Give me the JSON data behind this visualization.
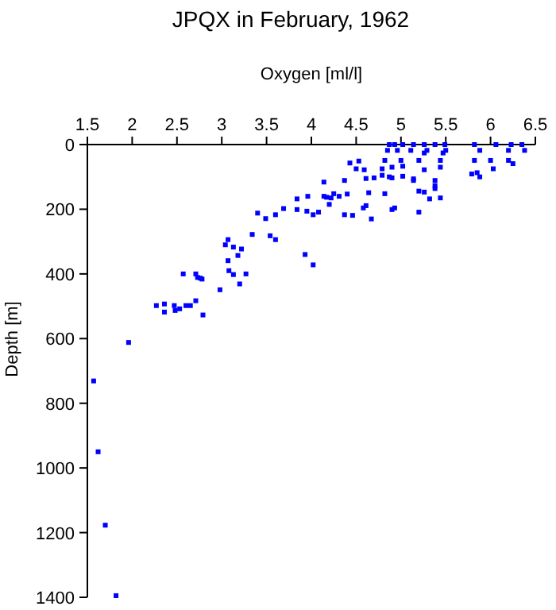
{
  "chart_data": {
    "type": "scatter",
    "title": "JPQX in February, 1962",
    "xlabel": "Oxygen [ml/l]",
    "ylabel": "Depth [m]",
    "xlim": [
      1.5,
      6.5
    ],
    "xticks": [
      1.5,
      2,
      2.5,
      3,
      3.5,
      4,
      4.5,
      5,
      5.5,
      6,
      6.5
    ],
    "ylim": [
      1400,
      0
    ],
    "yticks": [
      0,
      200,
      400,
      600,
      800,
      1000,
      1200,
      1400
    ],
    "marker": "square",
    "grid": false,
    "series": [
      {
        "color": "#0000ff",
        "x": [
          4.87,
          4.93,
          5.02,
          5.14,
          5.26,
          5.38,
          5.49,
          5.82,
          6.06,
          6.23,
          6.35,
          4.85,
          4.96,
          5.11,
          5.29,
          5.5,
          5.88,
          6.2,
          6.38,
          5.26,
          5.47,
          4.82,
          5.0,
          5.2,
          5.44,
          5.82,
          6.0,
          6.2,
          4.43,
          4.53,
          4.5,
          4.59,
          4.79,
          4.9,
          5.02,
          5.26,
          5.44,
          5.85,
          6.03,
          6.25,
          4.61,
          4.7,
          4.79,
          4.9,
          5.02,
          5.14,
          5.38,
          5.79,
          5.88,
          4.14,
          4.37,
          4.64,
          4.87,
          5.14,
          5.38,
          4.14,
          4.22,
          4.4,
          4.82,
          5.2,
          5.26,
          5.38,
          3.84,
          3.96,
          4.17,
          4.25,
          4.2,
          4.31,
          4.58,
          4.61,
          4.9,
          4.93,
          5.2,
          5.32,
          5.44,
          3.84,
          3.95,
          4.02,
          4.37,
          4.46,
          4.67,
          3.4,
          3.49,
          3.6,
          3.69,
          4.08,
          3.34,
          3.54,
          3.6,
          3.07,
          3.04,
          3.13,
          3.22,
          2.57,
          2.71,
          2.73,
          2.78,
          2.76,
          3.07,
          3.08,
          3.13,
          3.27,
          3.2,
          2.98,
          3.18,
          4.02,
          3.93,
          2.27,
          2.36,
          2.36,
          2.47,
          2.48,
          2.53,
          2.6,
          2.65,
          2.71,
          2.79,
          1.96,
          1.57,
          1.62,
          1.7,
          1.82
        ],
        "values": [
          0,
          0,
          0,
          0,
          0,
          0,
          0,
          0,
          0,
          0,
          0,
          18,
          18,
          18,
          18,
          18,
          18,
          18,
          18,
          26,
          26,
          49,
          49,
          49,
          49,
          49,
          49,
          49,
          57,
          51,
          75,
          78,
          75,
          70,
          67,
          78,
          70,
          87,
          75,
          59,
          105,
          103,
          95,
          103,
          98,
          106,
          111,
          91,
          100,
          116,
          111,
          149,
          100,
          111,
          127,
          160,
          165,
          153,
          152,
          144,
          147,
          136,
          168,
          160,
          163,
          152,
          185,
          160,
          196,
          189,
          201,
          196,
          209,
          168,
          165,
          201,
          206,
          217,
          217,
          219,
          230,
          212,
          229,
          217,
          198,
          209,
          278,
          282,
          294,
          294,
          310,
          317,
          323,
          400,
          400,
          411,
          416,
          413,
          359,
          390,
          402,
          400,
          431,
          449,
          343,
          372,
          340,
          498,
          493,
          518,
          498,
          513,
          508,
          498,
          498,
          483,
          527,
          612,
          731,
          950,
          1177,
          1395
        ]
      }
    ]
  }
}
